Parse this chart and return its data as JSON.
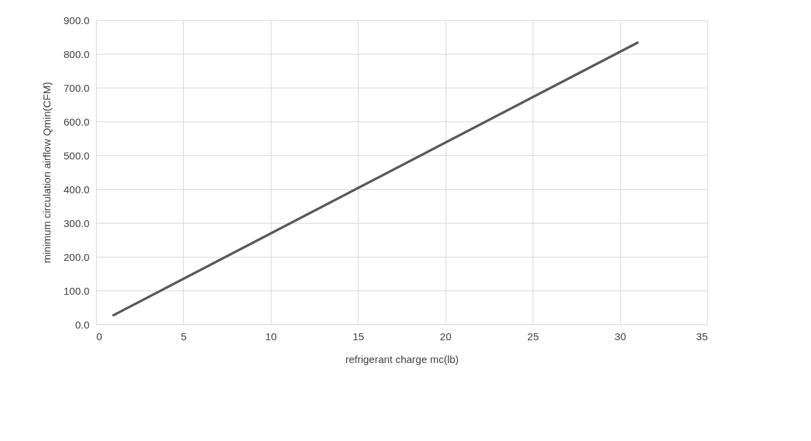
{
  "chart_data": {
    "type": "line",
    "xlabel": "refrigerant charge mc(lb)",
    "ylabel": "minimum circulation airflow Qmin(CFM)",
    "x": [
      1,
      31
    ],
    "series": [
      {
        "color": "#595959",
        "values": [
          27,
          833
        ]
      }
    ],
    "xlim": [
      0,
      35
    ],
    "xticks": [
      0,
      5,
      10,
      15,
      20,
      25,
      30,
      35
    ],
    "ylim": [
      0,
      900
    ],
    "yticks": [
      {
        "value": 0,
        "label": "0.0"
      },
      {
        "value": 100,
        "label": "100.0"
      },
      {
        "value": 200,
        "label": "200.0"
      },
      {
        "value": 300,
        "label": "300.0"
      },
      {
        "value": 400,
        "label": "400.0"
      },
      {
        "value": 500,
        "label": "500.0"
      },
      {
        "value": 600,
        "label": "600.0"
      },
      {
        "value": 700,
        "label": "700.0"
      },
      {
        "value": 800,
        "label": "800.0"
      },
      {
        "value": 900,
        "label": "900.0"
      }
    ],
    "grid": true,
    "marker": "none",
    "line_style": "solid"
  }
}
